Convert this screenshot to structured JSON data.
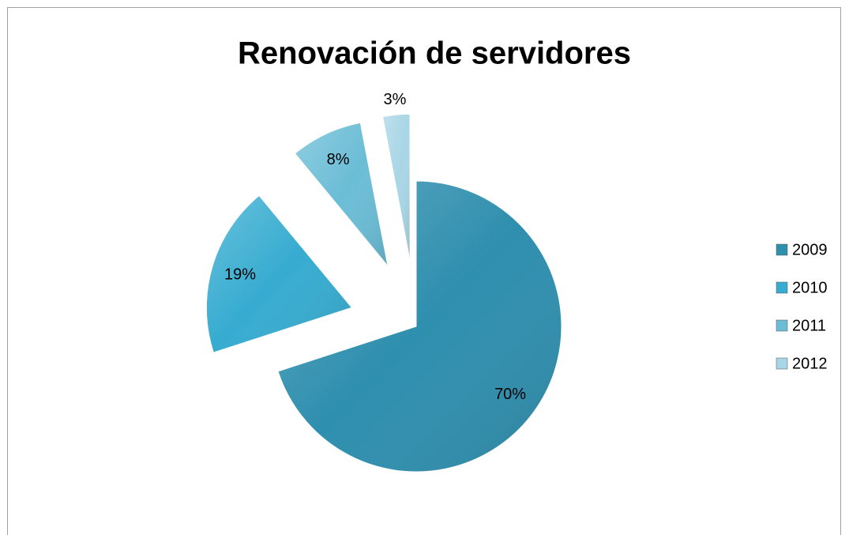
{
  "chart_data": {
    "type": "pie",
    "title": "Renovación de servidores",
    "categories": [
      "2009",
      "2010",
      "2011",
      "2012"
    ],
    "values": [
      70,
      19,
      8,
      3
    ],
    "value_labels": [
      "70%",
      "19%",
      "8%",
      "3%"
    ],
    "colors": [
      "#2f8fae",
      "#37acd0",
      "#6bbdd6",
      "#a9d6e6"
    ],
    "legend": "right"
  }
}
